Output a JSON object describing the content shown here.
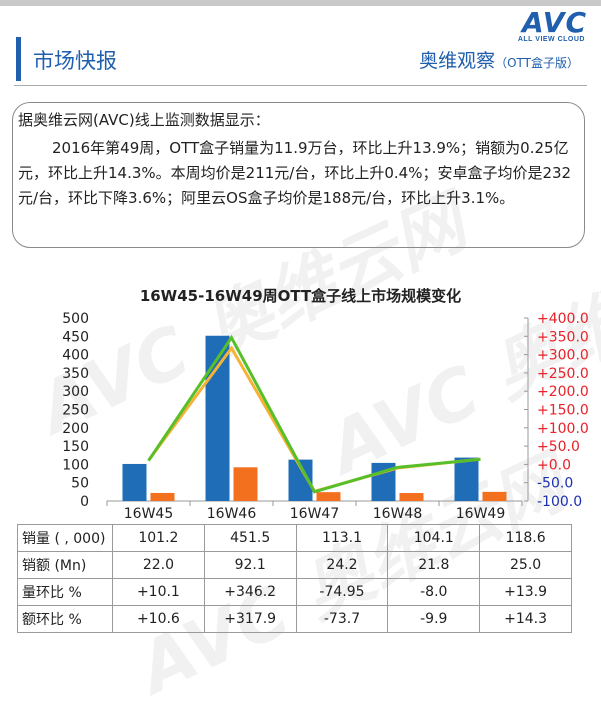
{
  "header": {
    "section_title": "市场快报",
    "right_title": "奥维观察",
    "right_sub": "（OTT盒子版）",
    "logo_text": "AVC",
    "logo_sub": "ALL VIEW CLOUD"
  },
  "summary": {
    "intro": "据奥维云网(AVC)线上监测数据显示：",
    "body": "2016年第49周，OTT盒子销量为11.9万台，环比上升13.9%；销额为0.25亿元，环比上升14.3%。本周均价是211元/台，环比上升0.4%；安卓盒子均价是232元/台，环比下降3.6%；阿里云OS盒子均价是188元/台，环比上升3.1%。"
  },
  "watermark": {
    "text": "AVC 奥维云网"
  },
  "chart_data": {
    "type": "bar",
    "title": "16W45-16W49周OTT盒子线上市场规模变化",
    "categories": [
      "16W45",
      "16W46",
      "16W47",
      "16W48",
      "16W49"
    ],
    "series": [
      {
        "name": "销量 ( , 000)",
        "type": "bar",
        "axis": "left",
        "values": [
          101.2,
          451.5,
          113.1,
          104.1,
          118.6
        ]
      },
      {
        "name": "销额 (Mn)",
        "type": "bar",
        "axis": "left",
        "values": [
          22.0,
          92.1,
          24.2,
          21.8,
          25.0
        ]
      },
      {
        "name": "量环比 %",
        "type": "line",
        "axis": "right",
        "values": [
          10.1,
          346.2,
          -74.95,
          -8.0,
          13.9
        ]
      },
      {
        "name": "额环比 %",
        "type": "line",
        "axis": "right",
        "values": [
          10.6,
          317.9,
          -73.7,
          -9.9,
          14.3
        ]
      }
    ],
    "table_values": [
      [
        "101.2",
        "451.5",
        "113.1",
        "104.1",
        "118.6"
      ],
      [
        "22.0",
        "92.1",
        "24.2",
        "21.8",
        "25.0"
      ],
      [
        "+10.1",
        "+346.2",
        "-74.95",
        "-8.0",
        "+13.9"
      ],
      [
        "+10.6",
        "+317.9",
        "-73.7",
        "-9.9",
        "+14.3"
      ]
    ],
    "left_axis": {
      "ylim": [
        0,
        500
      ],
      "ticks": [
        "0",
        "50",
        "100",
        "150",
        "200",
        "250",
        "300",
        "350",
        "400",
        "450",
        "500"
      ]
    },
    "right_axis": {
      "ylim": [
        -100,
        400
      ],
      "ticks": [
        "-100.0",
        "-50.0",
        "+0.0",
        "+50.0",
        "+100.0",
        "+150.0",
        "+200.0",
        "+250.0",
        "+300.0",
        "+350.0",
        "+400.0"
      ]
    },
    "grid": false,
    "legend": "table-below",
    "colors": {
      "bar1": "#1f6db7",
      "bar2": "#f3701f",
      "line1": "#57bf2a",
      "line2": "#f5b335",
      "right_axis_pos": "#e8212a",
      "right_axis_neg": "#1c2fb0"
    }
  }
}
